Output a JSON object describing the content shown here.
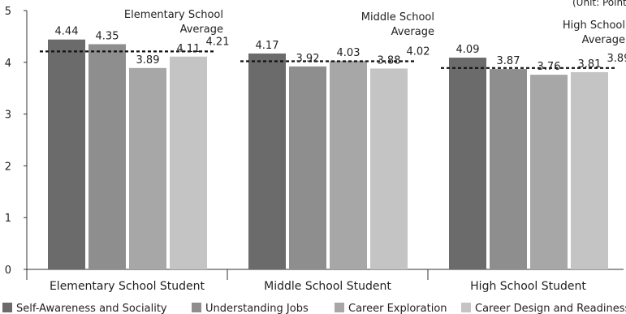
{
  "chart_data": {
    "type": "bar",
    "unit_text": "(Unit: Point)",
    "categories": [
      "Elementary School Student",
      "Middle School Student",
      "High School Student"
    ],
    "series": [
      {
        "name": "Self-Awareness and Sociality",
        "values": [
          4.44,
          4.17,
          4.09
        ],
        "color": "#6b6b6b"
      },
      {
        "name": "Understanding Jobs",
        "values": [
          4.35,
          3.92,
          3.87
        ],
        "color": "#8e8e8e"
      },
      {
        "name": "Career Exploration",
        "values": [
          3.89,
          4.03,
          3.76
        ],
        "color": "#a7a7a7"
      },
      {
        "name": "Career Design and Readiness",
        "values": [
          4.11,
          3.88,
          3.81
        ],
        "color": "#c4c4c4"
      }
    ],
    "averages": [
      {
        "value": 4.21,
        "label_lines": [
          "Elementary School",
          "Average"
        ]
      },
      {
        "value": 4.02,
        "label_lines": [
          "Middle School",
          "Average"
        ]
      },
      {
        "value": 3.89,
        "label_lines": [
          "High School",
          "Average"
        ]
      }
    ],
    "yticks": [
      0,
      1,
      2,
      3,
      4,
      5
    ],
    "ylim": [
      0,
      5
    ],
    "grid": false,
    "legend_position": "bottom"
  }
}
